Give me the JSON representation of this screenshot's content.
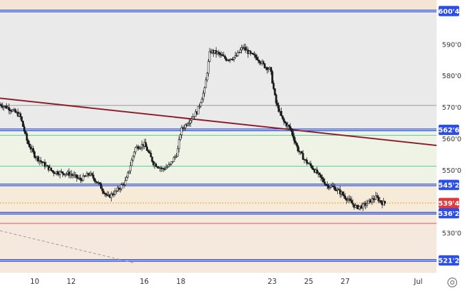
{
  "chart_data": {
    "type": "candlestick",
    "y_axis": {
      "ticks": [
        "590'0",
        "580'0",
        "570'0",
        "560'0",
        "550'0",
        "530'0"
      ],
      "tick_values": [
        590,
        580,
        570,
        560,
        550,
        530
      ],
      "range": [
        517.3,
        604.0
      ]
    },
    "x_axis": {
      "ticks": [
        "10",
        "12",
        "16",
        "18",
        "23",
        "25",
        "27",
        "Jul"
      ],
      "tick_day_index": [
        10,
        12,
        16,
        18,
        23,
        25,
        27,
        31
      ],
      "range_days": [
        8.1,
        32.0
      ]
    },
    "horizontal_levels": [
      {
        "label": "600'4",
        "value": 600.5,
        "color": "#2b4ee6",
        "label_bg": "#2b4ee6",
        "style": "double-blue"
      },
      {
        "label": "562'6",
        "value": 562.75,
        "color": "#2b4ee6",
        "label_bg": "#2b4ee6",
        "style": "double-blue"
      },
      {
        "label": "545'2",
        "value": 545.25,
        "color": "#2b4ee6",
        "label_bg": "#2b4ee6",
        "style": "double-blue"
      },
      {
        "label": "536'2",
        "value": 536.25,
        "color": "#2b4ee6",
        "label_bg": "#2b4ee6",
        "style": "double-blue"
      },
      {
        "label": "521'2",
        "value": 521.25,
        "color": "#2b4ee6",
        "label_bg": "#2b4ee6",
        "style": "double-blue"
      }
    ],
    "reference_lines": [
      {
        "value": 570.5,
        "color": "#9a9a9a"
      },
      {
        "value": 561.0,
        "color": "#5ec7a0"
      },
      {
        "value": 551.2,
        "color": "#5ec7a0"
      },
      {
        "value": 533.0,
        "color": "#e05252"
      }
    ],
    "current_price": {
      "label": "539'4",
      "value": 539.5,
      "color": "#e0393e"
    },
    "trendlines": [
      {
        "x1": 8.1,
        "y1": 572.8,
        "x2": 32.0,
        "y2": 557.8,
        "color": "#8b1f2b",
        "style": "solid"
      },
      {
        "x1": 8.1,
        "y1": 530.7,
        "x2": 15.4,
        "y2": 520.5,
        "color": "#9a9a9a",
        "style": "dashed"
      }
    ],
    "zones": [
      {
        "from": 600.5,
        "to": 604.0,
        "color": "#f3e4d3"
      },
      {
        "from": 562.75,
        "to": 600.5,
        "color": "#eaeaea"
      },
      {
        "from": 545.25,
        "to": 562.75,
        "color": "#eef3e5"
      },
      {
        "from": 536.25,
        "to": 545.25,
        "color": "#f6ebd9"
      },
      {
        "from": 521.25,
        "to": 536.25,
        "color": "#f5e9de"
      },
      {
        "from": 517.3,
        "to": 521.25,
        "color": "#f5e9de"
      }
    ],
    "price_path": [
      [
        8.1,
        570.8
      ],
      [
        8.6,
        569.6
      ],
      [
        9.2,
        567.2
      ],
      [
        9.6,
        558.8
      ],
      [
        10.0,
        554.6
      ],
      [
        10.5,
        551.8
      ],
      [
        11.0,
        549.4
      ],
      [
        11.5,
        549.1
      ],
      [
        12.0,
        548.6
      ],
      [
        12.5,
        546.9
      ],
      [
        13.0,
        548.8
      ],
      [
        13.5,
        545.6
      ],
      [
        14.0,
        541.3
      ],
      [
        14.5,
        543.4
      ],
      [
        15.0,
        546.5
      ],
      [
        15.5,
        557.0
      ],
      [
        16.0,
        558.2
      ],
      [
        16.5,
        552.2
      ],
      [
        17.0,
        550.2
      ],
      [
        17.4,
        551.5
      ],
      [
        17.8,
        555.4
      ],
      [
        18.0,
        562.6
      ],
      [
        18.5,
        565.9
      ],
      [
        18.9,
        568.6
      ],
      [
        19.3,
        575.5
      ],
      [
        19.6,
        587.8
      ],
      [
        20.0,
        587.1
      ],
      [
        20.5,
        585.2
      ],
      [
        21.0,
        585.9
      ],
      [
        21.4,
        589.0
      ],
      [
        21.8,
        586.8
      ],
      [
        22.2,
        585.5
      ],
      [
        22.6,
        582.9
      ],
      [
        22.9,
        582.0
      ],
      [
        23.2,
        571.5
      ],
      [
        23.6,
        565.5
      ],
      [
        24.0,
        563.1
      ],
      [
        24.4,
        556.6
      ],
      [
        24.8,
        553.0
      ],
      [
        25.2,
        550.8
      ],
      [
        25.6,
        547.9
      ],
      [
        26.0,
        545.1
      ],
      [
        26.4,
        544.4
      ],
      [
        26.8,
        542.5
      ],
      [
        27.2,
        540.3
      ],
      [
        27.6,
        538.1
      ],
      [
        28.0,
        538.6
      ],
      [
        28.4,
        540.3
      ],
      [
        28.7,
        541.3
      ],
      [
        29.0,
        539.6
      ],
      [
        29.2,
        539.4
      ]
    ]
  }
}
